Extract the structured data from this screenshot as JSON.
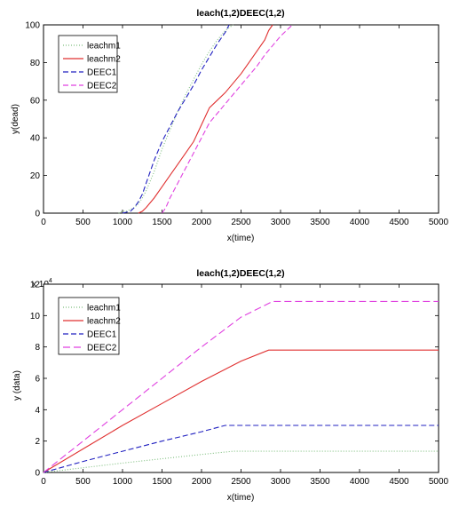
{
  "chart_data": [
    {
      "type": "line",
      "title": "leach(1,2)DEEC(1,2)",
      "xlabel": "x(time)",
      "ylabel": "y(dead)",
      "xlim": [
        0,
        5000
      ],
      "ylim": [
        0,
        100
      ],
      "xticks": [
        0,
        500,
        1000,
        1500,
        2000,
        2500,
        3000,
        3500,
        4000,
        4500,
        5000
      ],
      "yticks": [
        0,
        20,
        40,
        60,
        80,
        100
      ],
      "tick_labels_x": [
        "0",
        "500",
        "1000",
        "1500",
        "2000",
        "2500",
        "3000",
        "3500",
        "4000",
        "4500",
        "5000"
      ],
      "tick_labels_y": [
        "0",
        "20",
        "40",
        "60",
        "80",
        "100"
      ],
      "exponent": "",
      "grid": false,
      "legend": "top-left",
      "series": [
        {
          "name": "leachm1",
          "color": "#7fbf7f",
          "dash": "1,2",
          "x": [
            950,
            1000,
            1050,
            1100,
            1150,
            1200,
            1250,
            1300,
            1400,
            1500,
            1600,
            1700,
            1800,
            1900,
            2000,
            2100,
            2200,
            2300,
            2400
          ],
          "y": [
            0,
            1,
            1,
            2,
            3,
            5,
            8,
            12,
            22,
            34,
            44,
            54,
            63,
            71,
            79,
            86,
            92,
            97,
            100
          ]
        },
        {
          "name": "leachm2",
          "color": "#e03030",
          "dash": "",
          "x": [
            1200,
            1250,
            1300,
            1400,
            1500,
            1600,
            1700,
            1800,
            1900,
            2000,
            2100,
            2200,
            2300,
            2400,
            2500,
            2600,
            2700,
            2800,
            2850,
            2900
          ],
          "y": [
            0,
            1,
            3,
            8,
            14,
            20,
            26,
            32,
            38,
            47,
            56,
            60,
            64,
            69,
            74,
            80,
            86,
            92,
            97,
            100
          ]
        },
        {
          "name": "DEEC1",
          "color": "#2020c0",
          "dash": "6,3",
          "x": [
            1000,
            1100,
            1150,
            1200,
            1250,
            1300,
            1400,
            1500,
            1600,
            1700,
            1800,
            1900,
            2000,
            2100,
            2200,
            2300,
            2350
          ],
          "y": [
            0,
            1,
            3,
            6,
            10,
            16,
            28,
            38,
            46,
            54,
            61,
            68,
            76,
            83,
            90,
            96,
            100
          ]
        },
        {
          "name": "DEEC2",
          "color": "#e040e0",
          "dash": "6,3",
          "x": [
            1500,
            1550,
            1600,
            1700,
            1800,
            1900,
            2000,
            2100,
            2200,
            2300,
            2400,
            2500,
            2600,
            2700,
            2800,
            2900,
            3000,
            3100,
            3150
          ],
          "y": [
            0,
            3,
            8,
            16,
            24,
            32,
            40,
            48,
            53,
            58,
            63,
            68,
            73,
            78,
            84,
            89,
            94,
            98,
            100
          ]
        }
      ]
    },
    {
      "type": "line",
      "title": "leach(1,2)DEEC(1,2)",
      "xlabel": "x(time)",
      "ylabel": "y (data)",
      "xlim": [
        0,
        5000
      ],
      "ylim": [
        0,
        12
      ],
      "xticks": [
        0,
        500,
        1000,
        1500,
        2000,
        2500,
        3000,
        3500,
        4000,
        4500,
        5000
      ],
      "yticks": [
        0,
        2,
        4,
        6,
        8,
        10,
        12
      ],
      "tick_labels_x": [
        "0",
        "500",
        "1000",
        "1500",
        "2000",
        "2500",
        "3000",
        "3500",
        "4000",
        "4500",
        "5000"
      ],
      "tick_labels_y": [
        "0",
        "2",
        "4",
        "6",
        "8",
        "10",
        "12"
      ],
      "exponent": "x 10",
      "exponent_power": "4",
      "grid": false,
      "legend": "top-left",
      "series": [
        {
          "name": "leachm1",
          "color": "#7fbf7f",
          "dash": "1,2",
          "x": [
            0,
            1000,
            2000,
            2400,
            5000
          ],
          "y": [
            0,
            0.6,
            1.15,
            1.35,
            1.35
          ]
        },
        {
          "name": "leachm2",
          "color": "#e03030",
          "dash": "",
          "x": [
            0,
            500,
            1000,
            1500,
            2000,
            2500,
            2850,
            5000
          ],
          "y": [
            0,
            1.5,
            3.0,
            4.4,
            5.8,
            7.1,
            7.8,
            7.8
          ]
        },
        {
          "name": "DEEC1",
          "color": "#2020c0",
          "dash": "6,3",
          "x": [
            0,
            500,
            1000,
            1500,
            2000,
            2300,
            5000
          ],
          "y": [
            0,
            0.7,
            1.35,
            2.0,
            2.6,
            3.0,
            3.0
          ]
        },
        {
          "name": "DEEC2",
          "color": "#e040e0",
          "dash": "8,4",
          "x": [
            0,
            500,
            1000,
            1500,
            2000,
            2500,
            2900,
            5000
          ],
          "y": [
            0,
            2.0,
            4.0,
            6.0,
            8.0,
            9.9,
            10.9,
            10.9
          ]
        }
      ]
    }
  ]
}
